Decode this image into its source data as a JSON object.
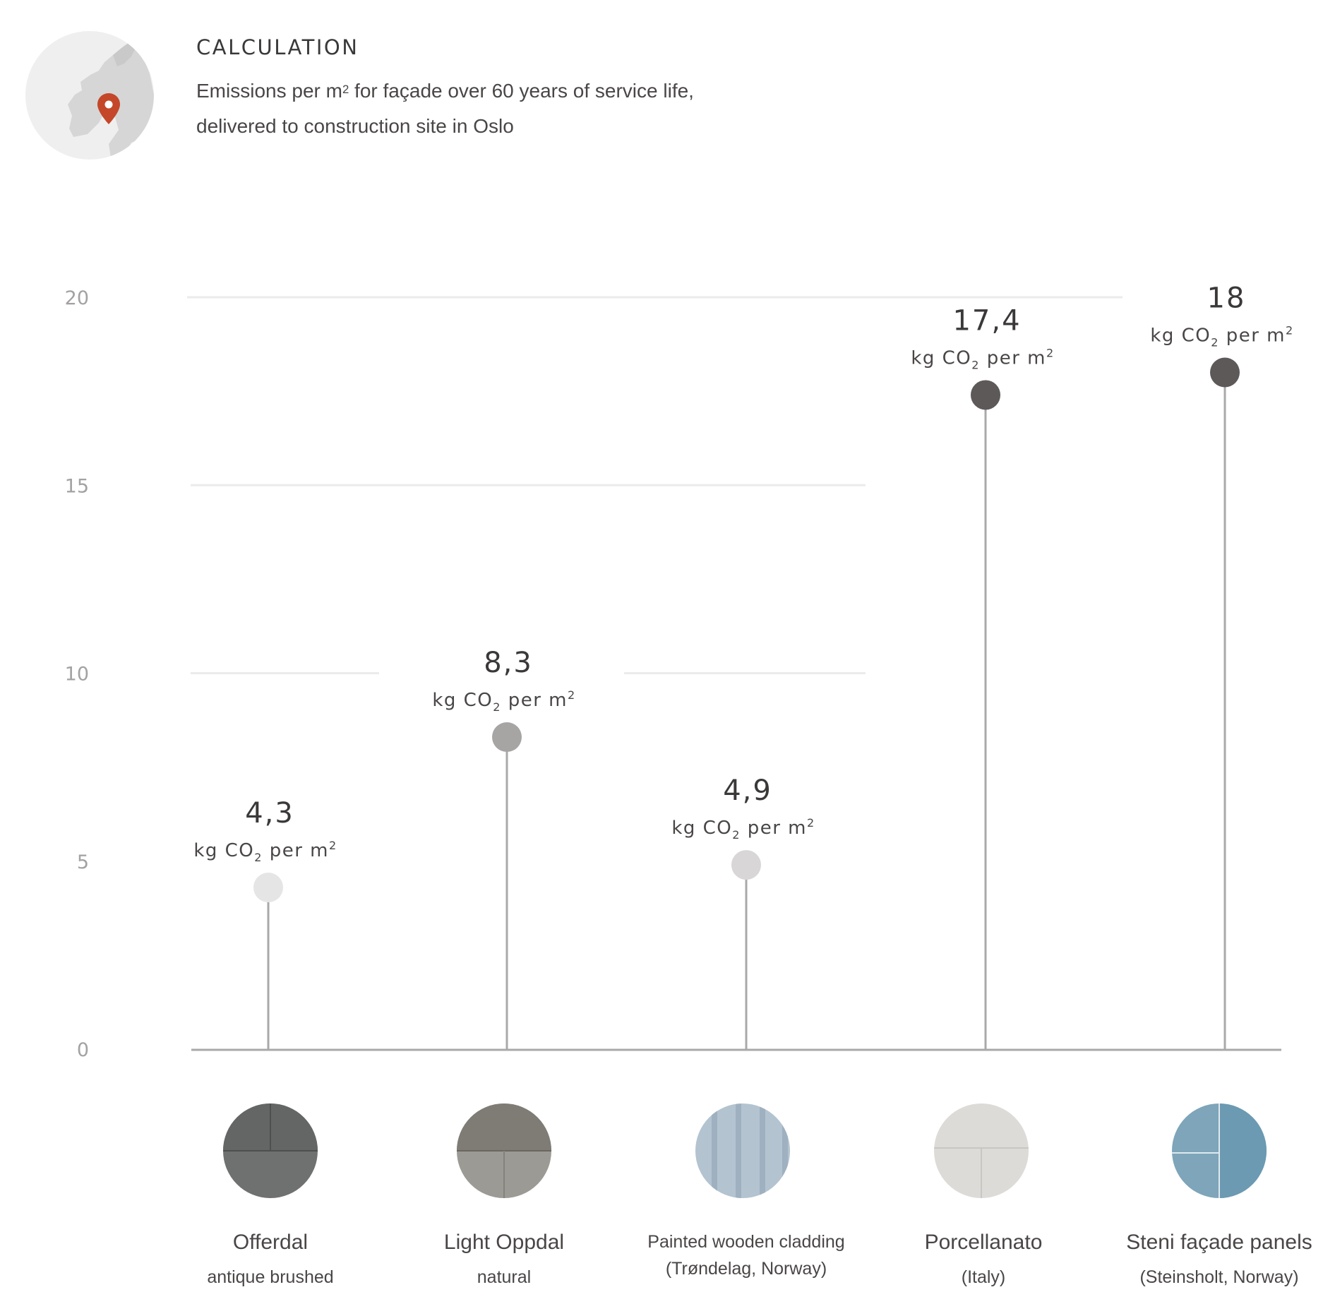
{
  "header": {
    "title": "CALCULATION",
    "subtitle_line1_pre": "Emissions per m",
    "subtitle_line1_sup": "2",
    "subtitle_line1_post": " for façade over 60 years of service life,",
    "subtitle_line2": "delivered to construction site in Oslo"
  },
  "map_icon": "norway-map-location-pin-icon",
  "colors": {
    "pin": "#c4472a",
    "gridline": "#ebebeb",
    "axis": "#a9a9a9",
    "stem": "#a9a9a9"
  },
  "chart_data": {
    "type": "lollipop",
    "ylim": [
      0,
      20
    ],
    "yticks": [
      "0",
      "5",
      "10",
      "15",
      "20"
    ],
    "grid": true,
    "value_unit": {
      "pre": "kg CO",
      "sub": "2",
      "mid": " per m",
      "sup": "2"
    },
    "categories": [
      {
        "name": "Offerdal",
        "sub": "antique brushed",
        "value": 4.3,
        "label": "4,3",
        "dot": "#e6e5e5",
        "swatch": "slate-dark"
      },
      {
        "name": "Light Oppdal",
        "sub": "natural",
        "value": 8.3,
        "label": "8,3",
        "dot": "#a7a4a4",
        "swatch": "slate-light"
      },
      {
        "name": "Painted wooden cladding",
        "sub": "(Trøndelag, Norway)",
        "value": 4.9,
        "label": "4,9",
        "dot": "#d8d6d7",
        "swatch": "wood-blue"
      },
      {
        "name": "Porcellanato",
        "sub": "(Italy)",
        "value": 17.4,
        "label": "17,4",
        "dot": "#5d5959",
        "swatch": "porcelain"
      },
      {
        "name": "Steni façade panels",
        "sub": "(Steinsholt, Norway)",
        "value": 18,
        "label": "18",
        "dot": "#5d5959",
        "swatch": "steni-blue"
      }
    ]
  }
}
